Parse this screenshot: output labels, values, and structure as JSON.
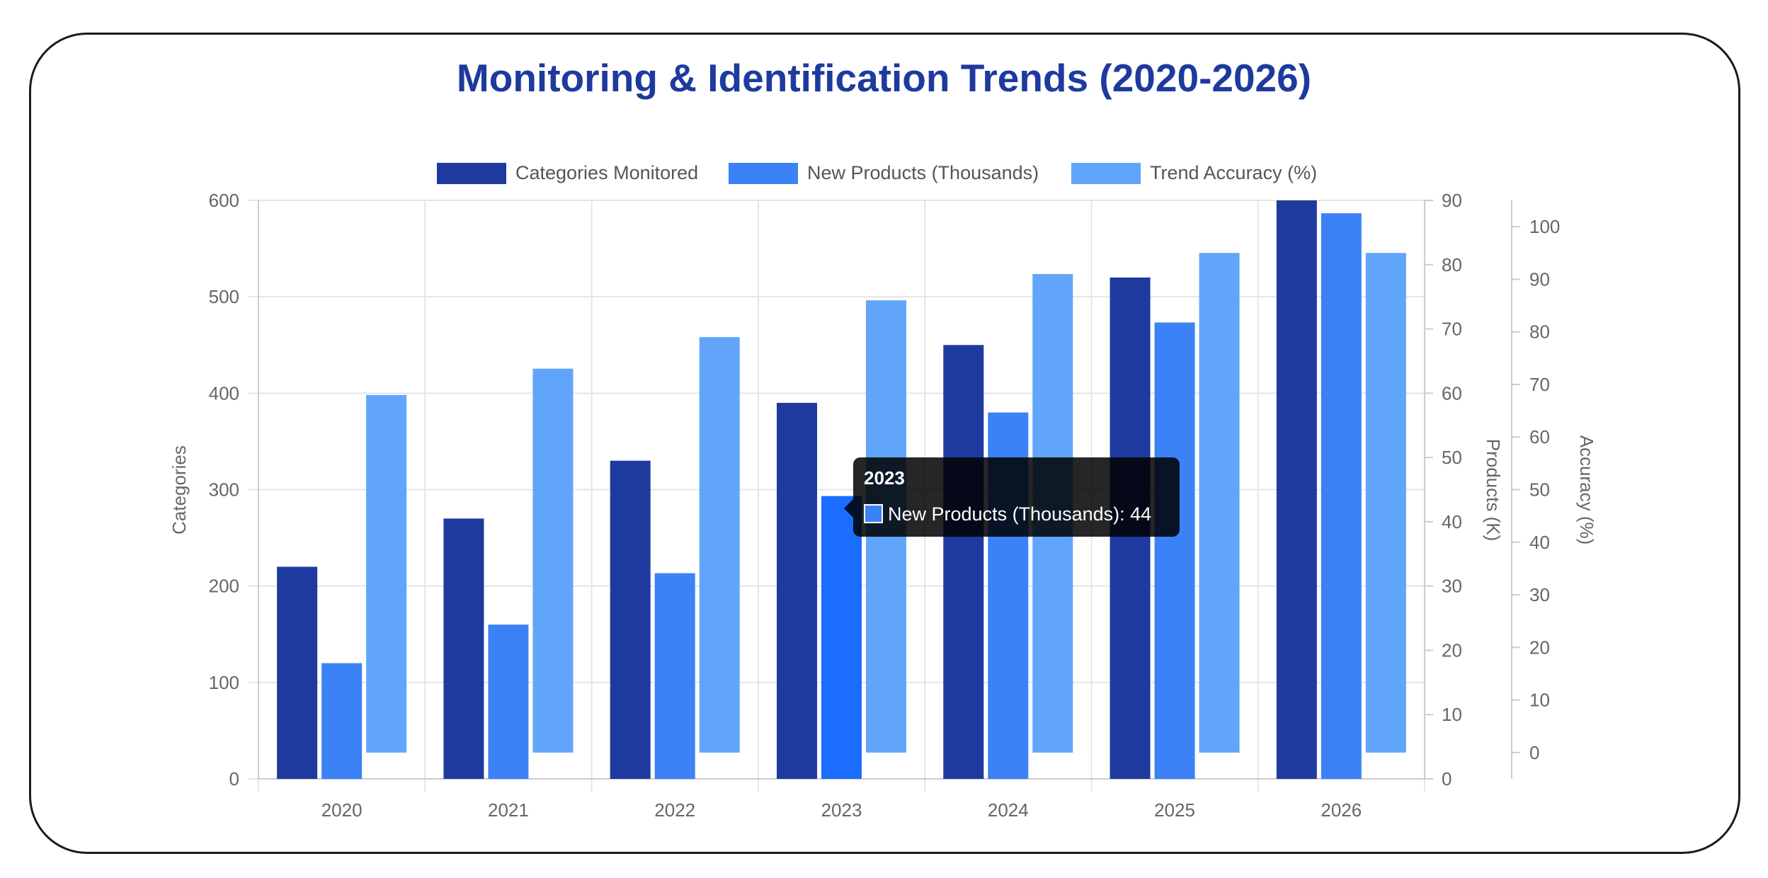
{
  "chart_data": {
    "type": "bar",
    "title": "Monitoring & Identification Trends (2020-2026)",
    "categories": [
      "2020",
      "2021",
      "2022",
      "2023",
      "2024",
      "2025",
      "2026"
    ],
    "series": [
      {
        "name": "Categories Monitored",
        "axis": "y",
        "color": "#1e3a9e",
        "values": [
          220,
          270,
          330,
          390,
          450,
          520,
          600
        ]
      },
      {
        "name": "New Products (Thousands)",
        "axis": "y1",
        "color": "#3b82f6",
        "values": [
          18,
          24,
          32,
          44,
          57,
          71,
          88
        ]
      },
      {
        "name": "Trend Accuracy (%)",
        "axis": "y2",
        "color": "#60a5fa",
        "values": [
          68,
          73,
          79,
          86,
          91,
          95,
          95
        ]
      }
    ],
    "axes": {
      "y": {
        "label": "Categories",
        "min": 0,
        "max": 600,
        "ticks": [
          "0",
          "100",
          "200",
          "300",
          "400",
          "500",
          "600"
        ]
      },
      "y1": {
        "label": "Products (K)",
        "min": 0,
        "max": 90,
        "ticks": [
          "0",
          "10",
          "20",
          "30",
          "40",
          "50",
          "60",
          "70",
          "80",
          "90"
        ]
      },
      "y2": {
        "label": "Accuracy (%)",
        "min": -5,
        "max": 105,
        "ticks": [
          "0",
          "10",
          "20",
          "30",
          "40",
          "50",
          "60",
          "70",
          "80",
          "90",
          "100"
        ]
      }
    },
    "legend_position": "top",
    "grid": true,
    "tooltip": {
      "title": "2023",
      "text": "New Products (Thousands): 44",
      "category": "2023",
      "series": "New Products (Thousands)",
      "highlight_color": "#1a6dff"
    }
  }
}
